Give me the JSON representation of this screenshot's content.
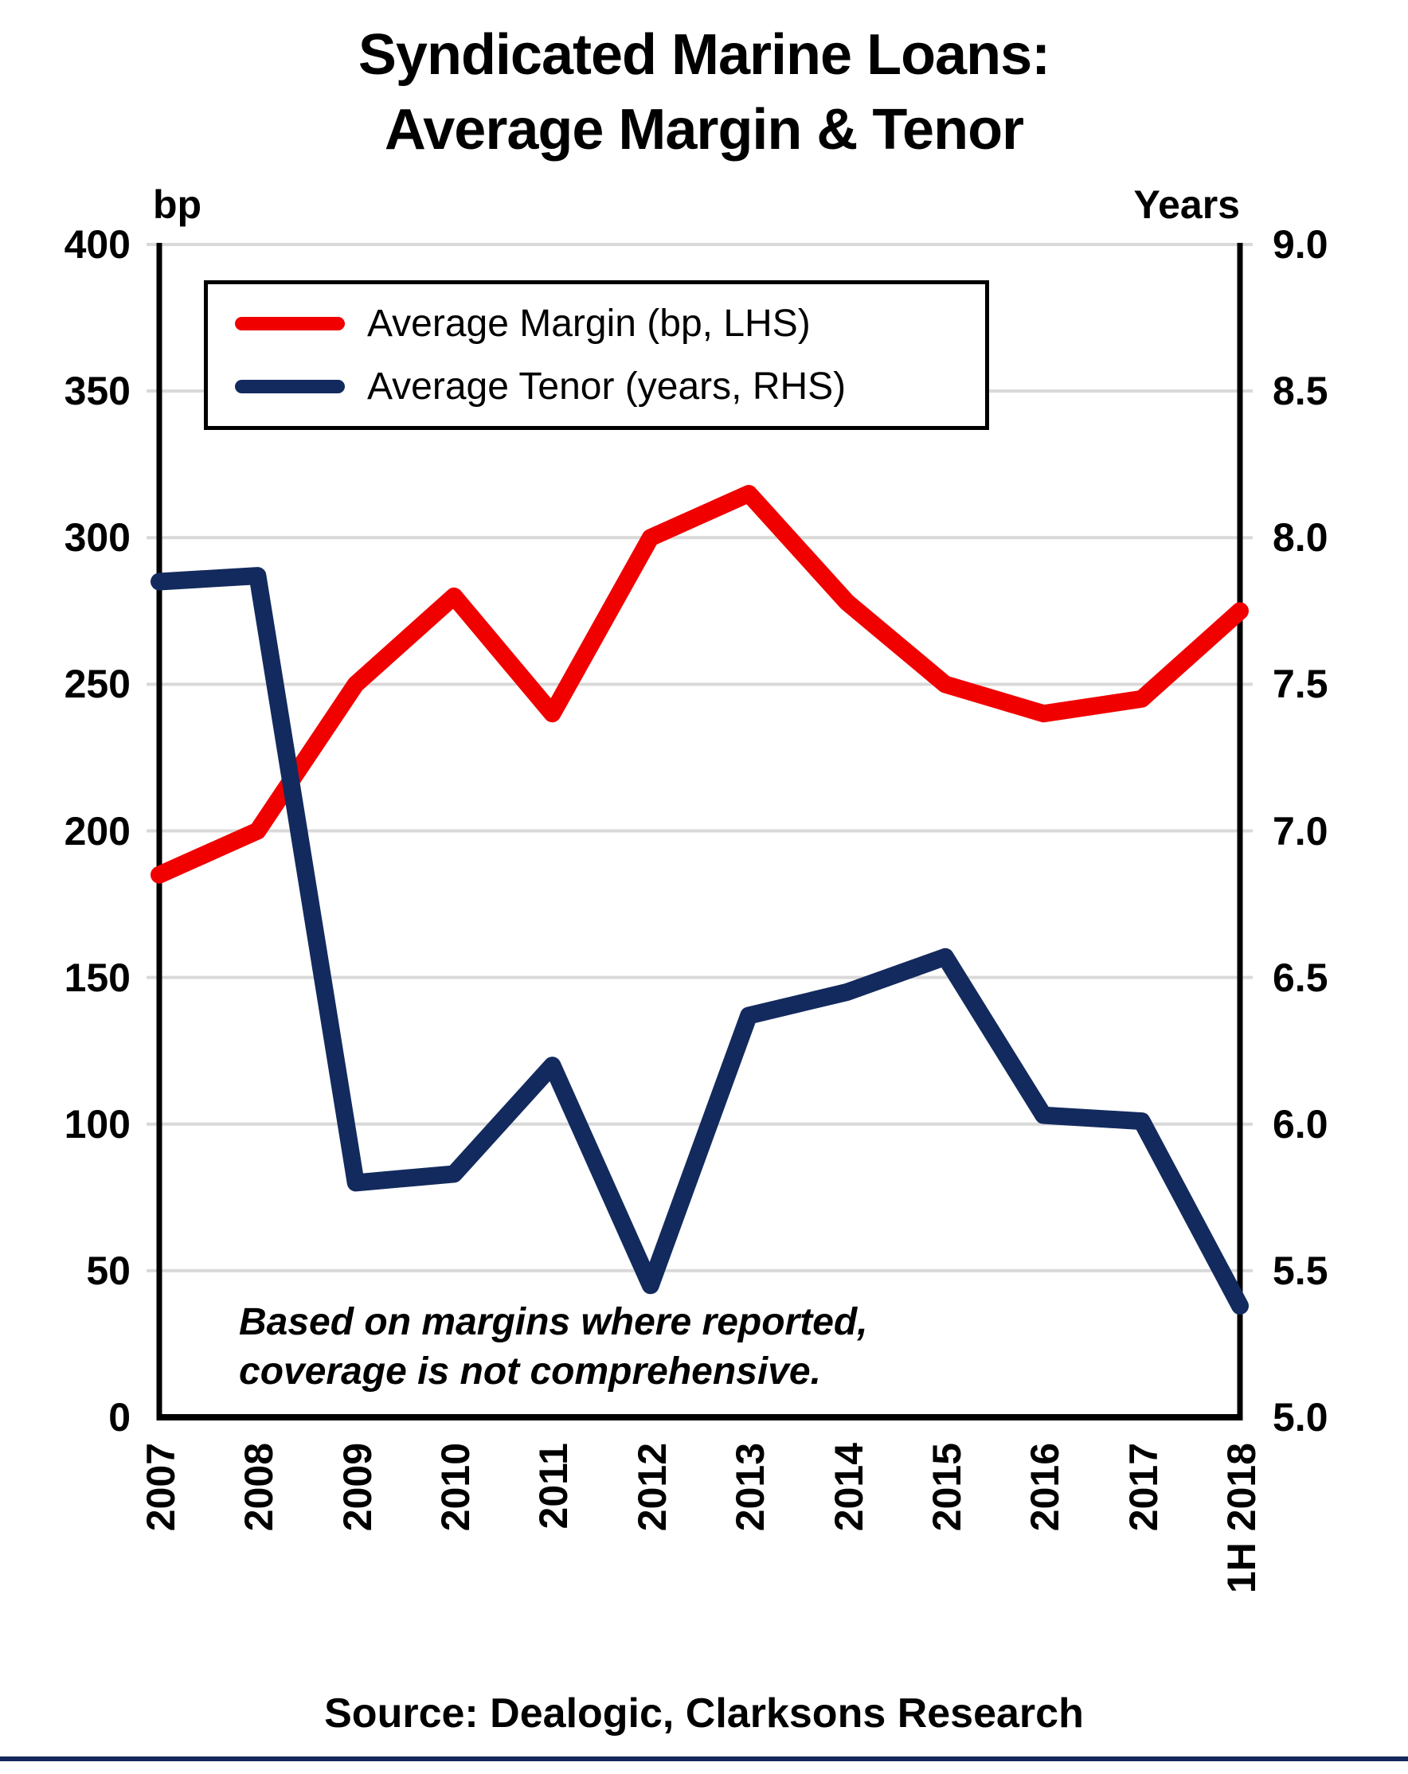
{
  "title": {
    "line1": "Syndicated Marine Loans:",
    "line2": "Average Margin & Tenor"
  },
  "axis_units": {
    "left": "bp",
    "right": "Years"
  },
  "legend": [
    {
      "label": "Average Margin (bp, LHS)"
    },
    {
      "label": "Average Tenor (years, RHS)"
    }
  ],
  "note": {
    "line1": "Based on margins where reported,",
    "line2": "coverage is not comprehensive."
  },
  "source": "Source: Dealogic, Clarksons Research",
  "chart_data": {
    "type": "line",
    "categories": [
      "2007",
      "2008",
      "2009",
      "2010",
      "2011",
      "2012",
      "2013",
      "2014",
      "2015",
      "2016",
      "2017",
      "1H 2018"
    ],
    "series": [
      {
        "name": "Average Margin (bp, LHS)",
        "axis": "left",
        "color": "#f10000",
        "values": [
          185,
          200,
          250,
          280,
          240,
          300,
          315,
          278,
          250,
          240,
          245,
          275
        ]
      },
      {
        "name": "Average Tenor (years, RHS)",
        "axis": "right",
        "color": "#132a5e",
        "values": [
          7.85,
          7.87,
          5.8,
          5.83,
          6.2,
          5.45,
          6.37,
          6.45,
          6.57,
          6.03,
          6.01,
          5.38
        ]
      }
    ],
    "left_axis": {
      "label": "bp",
      "min": 0,
      "max": 400,
      "ticks": [
        "400",
        "350",
        "300",
        "250",
        "200",
        "150",
        "100",
        "50",
        "0"
      ]
    },
    "right_axis": {
      "label": "Years",
      "min": 5.0,
      "max": 9.0,
      "ticks": [
        "9.0",
        "8.5",
        "8.0",
        "7.5",
        "7.0",
        "6.5",
        "6.0",
        "5.5",
        "5.0"
      ]
    },
    "grid": true,
    "gridline_color": "#d9d9d9",
    "legend_position": "top-left-inside"
  }
}
